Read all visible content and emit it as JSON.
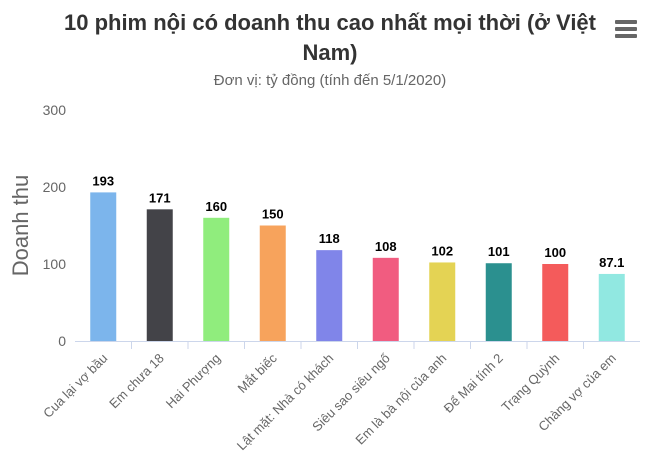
{
  "menu": {
    "icon": "hamburger-menu-icon"
  },
  "chart_data": {
    "type": "bar",
    "title": "10 phim nội có doanh thu cao nhất mọi thời (ở Việt Nam)",
    "subtitle": "Đơn vị: tỷ đồng (tính đến 5/1/2020)",
    "xlabel": "",
    "ylabel": "Doanh thu",
    "ylim": [
      0,
      300
    ],
    "yticks": [
      "0",
      "100",
      "200",
      "300"
    ],
    "grid": false,
    "legend": "none",
    "categories": [
      "Cua lại vợ bầu",
      "Em chưa 18",
      "Hai Phượng",
      "Mắt biếc",
      "Lật mặt: Nhà có khách",
      "Siêu sao siêu ngố",
      "Em là bà nội của anh",
      "Để Mai tính 2",
      "Trạng Quỳnh",
      "Chàng vợ của em"
    ],
    "values": [
      193,
      171,
      160,
      150,
      118,
      108,
      102,
      101,
      100,
      87.1
    ],
    "data_labels": [
      "193",
      "171",
      "160",
      "150",
      "118",
      "108",
      "102",
      "101",
      "100",
      "87.1"
    ],
    "colors": [
      "#7cb5ec",
      "#434348",
      "#90ed7d",
      "#f7a35c",
      "#8085e9",
      "#f15c80",
      "#e4d354",
      "#2b908f",
      "#f45b5b",
      "#91e8e1"
    ]
  }
}
